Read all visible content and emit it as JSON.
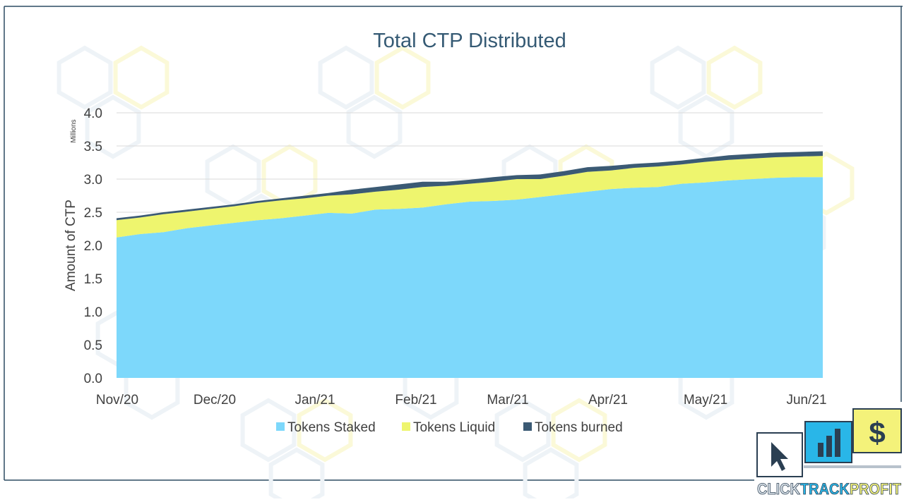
{
  "colors": {
    "staked": "#7dd8fb",
    "liquid": "#eef56e",
    "burned": "#3b5a74",
    "frame": "#2d4b62",
    "title": "#355a74",
    "axis_text": "#404040",
    "grid": "#d9d9d9",
    "watermark": "#eef3f7",
    "logo_blue": "#29b6e8",
    "logo_yellow": "#f4f27a",
    "logo_dark": "#2b3f52",
    "logo_grey": "#b8c2cc"
  },
  "logo": {
    "text_parts": [
      "CLICK",
      "TRACK",
      "PROFIT"
    ],
    "icons": [
      "cursor-icon",
      "bar-chart-icon",
      "dollar-icon"
    ]
  },
  "chart_data": {
    "type": "area",
    "stacked": true,
    "title": "Total CTP Distributed",
    "ylabel": "Amount of CTP",
    "yunit": "Millions",
    "ylim": [
      0,
      4.0
    ],
    "yticks": [
      0.0,
      0.5,
      1.0,
      1.5,
      2.0,
      2.5,
      3.0,
      3.5,
      4.0
    ],
    "ytick_labels": [
      "0.0",
      "0.5",
      "1.0",
      "1.5",
      "2.0",
      "2.5",
      "3.0",
      "3.5",
      "4.0"
    ],
    "xticks": [
      "Nov/20",
      "Dec/20",
      "Jan/21",
      "Feb/21",
      "Mar/21",
      "Apr/21",
      "May/21",
      "Jun/21"
    ],
    "grid": true,
    "legend": "bottom",
    "x": [
      0,
      1,
      2,
      3,
      4,
      5,
      6,
      7,
      8,
      9,
      10,
      11,
      12,
      13,
      14,
      15,
      16,
      17,
      18,
      19,
      20,
      21,
      22,
      23,
      24,
      25,
      26,
      27,
      28,
      29,
      30
    ],
    "series": [
      {
        "name": "Tokens Staked",
        "values": [
          2.12,
          2.17,
          2.2,
          2.26,
          2.3,
          2.34,
          2.38,
          2.41,
          2.45,
          2.49,
          2.48,
          2.54,
          2.55,
          2.57,
          2.62,
          2.66,
          2.67,
          2.69,
          2.73,
          2.77,
          2.81,
          2.85,
          2.87,
          2.88,
          2.93,
          2.95,
          2.98,
          3.0,
          3.02,
          3.03,
          3.03
        ]
      },
      {
        "name": "Tokens Liquid",
        "values": [
          0.26,
          0.25,
          0.27,
          0.25,
          0.25,
          0.25,
          0.26,
          0.27,
          0.26,
          0.26,
          0.29,
          0.27,
          0.29,
          0.31,
          0.28,
          0.27,
          0.29,
          0.31,
          0.27,
          0.28,
          0.3,
          0.28,
          0.3,
          0.31,
          0.29,
          0.31,
          0.31,
          0.31,
          0.31,
          0.31,
          0.32
        ]
      },
      {
        "name": "Tokens burned",
        "values": [
          0.03,
          0.03,
          0.03,
          0.03,
          0.03,
          0.03,
          0.03,
          0.03,
          0.04,
          0.04,
          0.07,
          0.07,
          0.08,
          0.08,
          0.06,
          0.06,
          0.07,
          0.06,
          0.07,
          0.07,
          0.07,
          0.07,
          0.06,
          0.06,
          0.06,
          0.06,
          0.07,
          0.07,
          0.07,
          0.07,
          0.07
        ]
      }
    ]
  }
}
